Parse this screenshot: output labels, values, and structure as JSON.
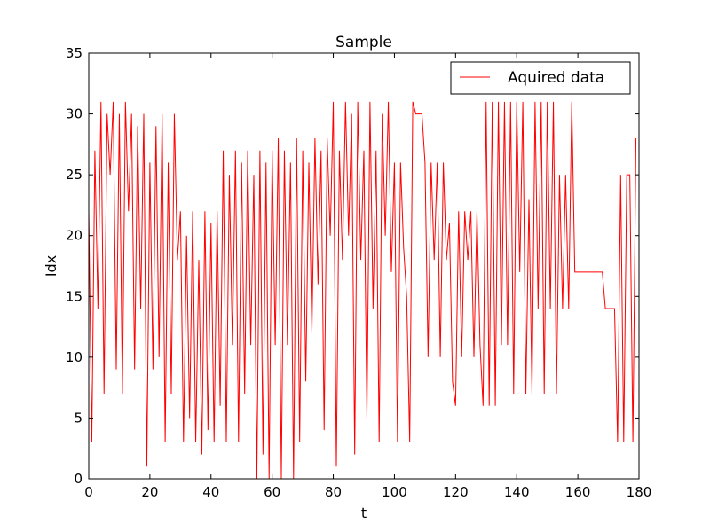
{
  "chart_data": {
    "type": "line",
    "title": "Sample",
    "xlabel": "t",
    "ylabel": "Idx",
    "xlim": [
      0,
      180
    ],
    "ylim": [
      0,
      35
    ],
    "x_ticks": [
      0,
      20,
      40,
      60,
      80,
      100,
      120,
      140,
      160,
      180
    ],
    "y_ticks": [
      0,
      5,
      10,
      15,
      20,
      25,
      30,
      35
    ],
    "grid": false,
    "legend_position": "top-right",
    "series": [
      {
        "name": "Aquired data",
        "color": "#ff0000",
        "x": [
          0,
          1,
          2,
          3,
          4,
          5,
          6,
          7,
          8,
          9,
          10,
          11,
          12,
          13,
          14,
          15,
          16,
          17,
          18,
          19,
          20,
          21,
          22,
          23,
          24,
          25,
          26,
          27,
          28,
          29,
          30,
          31,
          32,
          33,
          34,
          35,
          36,
          37,
          38,
          39,
          40,
          41,
          42,
          43,
          44,
          45,
          46,
          47,
          48,
          49,
          50,
          51,
          52,
          53,
          54,
          55,
          56,
          57,
          58,
          59,
          60,
          61,
          62,
          63,
          64,
          65,
          66,
          67,
          68,
          69,
          70,
          71,
          72,
          73,
          74,
          75,
          76,
          77,
          78,
          79,
          80,
          81,
          82,
          83,
          84,
          85,
          86,
          87,
          88,
          89,
          90,
          91,
          92,
          93,
          94,
          95,
          96,
          97,
          98,
          99,
          100,
          101,
          102,
          103,
          104,
          105,
          106,
          107,
          108,
          109,
          110,
          111,
          112,
          113,
          114,
          115,
          116,
          117,
          118,
          119,
          120,
          121,
          122,
          123,
          124,
          125,
          126,
          127,
          128,
          129,
          130,
          131,
          132,
          133,
          134,
          135,
          136,
          137,
          138,
          139,
          140,
          141,
          142,
          143,
          144,
          145,
          146,
          147,
          148,
          149,
          150,
          151,
          152,
          153,
          154,
          155,
          156,
          157,
          158,
          159,
          160,
          161,
          162,
          163,
          164,
          165,
          166,
          167,
          168,
          169,
          170,
          171,
          172,
          173,
          174,
          175,
          176,
          177,
          178,
          179
        ],
        "y": [
          22,
          3,
          27,
          14,
          31,
          7,
          30,
          25,
          31,
          9,
          30,
          7,
          31,
          22,
          30,
          9,
          29,
          14,
          30,
          1,
          26,
          9,
          29,
          10,
          30,
          3,
          26,
          7,
          30,
          18,
          22,
          3,
          20,
          5,
          22,
          3,
          18,
          2,
          22,
          4,
          21,
          3,
          22,
          6,
          27,
          3,
          25,
          11,
          27,
          3,
          26,
          7,
          27,
          11,
          25,
          0,
          27,
          2,
          26,
          0,
          27,
          11,
          28,
          0,
          27,
          11,
          26,
          0,
          28,
          3,
          27,
          8,
          26,
          12,
          28,
          16,
          27,
          4,
          28,
          20,
          31,
          1,
          27,
          18,
          31,
          20,
          30,
          2,
          31,
          18,
          27,
          5,
          31,
          14,
          27,
          3,
          30,
          20,
          31,
          17,
          26,
          3,
          26,
          19,
          15,
          3,
          31,
          30,
          30,
          30,
          26,
          10,
          26,
          18,
          26,
          10,
          26,
          18,
          21,
          8,
          6,
          22,
          10,
          22,
          18,
          22,
          10,
          22,
          11,
          6,
          31,
          6,
          31,
          6,
          31,
          11,
          31,
          11,
          31,
          7,
          31,
          17,
          31,
          7,
          23,
          7,
          31,
          14,
          31,
          7,
          31,
          14,
          31,
          7,
          25,
          14,
          25,
          14,
          31,
          17,
          17,
          17,
          17,
          17,
          17,
          17,
          17,
          17,
          17,
          14,
          14,
          14,
          14,
          3,
          25,
          3,
          25,
          25,
          3,
          28
        ]
      }
    ]
  }
}
